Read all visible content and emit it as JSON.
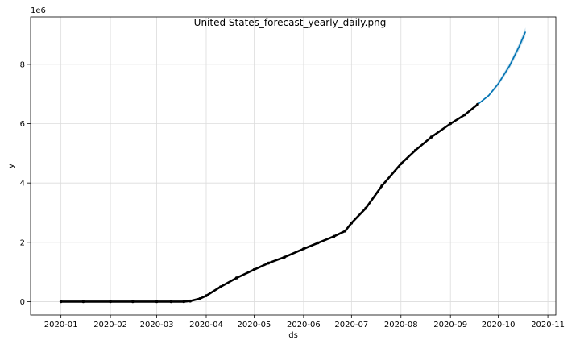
{
  "chart_data": {
    "type": "line",
    "title": "United States_forecast_yearly_daily.png",
    "xlabel": "ds",
    "ylabel": "y",
    "y_offset_label": "1e6",
    "x_tick_labels": [
      "2020-01",
      "2020-02",
      "2020-03",
      "2020-04",
      "2020-05",
      "2020-06",
      "2020-07",
      "2020-08",
      "2020-09",
      "2020-10",
      "2020-11"
    ],
    "x_ticks": [
      "2020-01-01",
      "2020-02-01",
      "2020-03-01",
      "2020-04-01",
      "2020-05-01",
      "2020-06-01",
      "2020-07-01",
      "2020-08-01",
      "2020-09-01",
      "2020-10-01",
      "2020-11-01"
    ],
    "xlim": [
      "2019-12-13",
      "2020-11-06"
    ],
    "y_ticks": [
      0,
      2000000,
      4000000,
      6000000,
      8000000
    ],
    "y_tick_labels": [
      "0",
      "2",
      "4",
      "6",
      "8"
    ],
    "ylim": [
      -450000,
      9600000
    ],
    "grid": true,
    "colors": {
      "forecast": "#0072B2",
      "observed": "#000000",
      "band": "#9ecae1"
    },
    "series": [
      {
        "role": "observed",
        "style": "points",
        "x": [
          "2020-01-01",
          "2020-01-15",
          "2020-02-01",
          "2020-02-15",
          "2020-03-01",
          "2020-03-10",
          "2020-03-18",
          "2020-03-22",
          "2020-03-28",
          "2020-04-01",
          "2020-04-10",
          "2020-04-20",
          "2020-05-01",
          "2020-05-10",
          "2020-05-20",
          "2020-06-01",
          "2020-06-10",
          "2020-06-20",
          "2020-06-27",
          "2020-07-01",
          "2020-07-10",
          "2020-07-20",
          "2020-08-01",
          "2020-08-10",
          "2020-08-20",
          "2020-09-01",
          "2020-09-10",
          "2020-09-18"
        ],
        "y": [
          0,
          0,
          0,
          0,
          0,
          0,
          0,
          20000,
          100000,
          200000,
          500000,
          800000,
          1080000,
          1300000,
          1500000,
          1780000,
          1980000,
          2200000,
          2380000,
          2650000,
          3150000,
          3900000,
          4650000,
          5100000,
          5550000,
          6000000,
          6300000,
          6650000
        ]
      },
      {
        "role": "forecast",
        "style": "line",
        "x": [
          "2020-01-01",
          "2020-01-15",
          "2020-02-01",
          "2020-02-15",
          "2020-03-01",
          "2020-03-10",
          "2020-03-18",
          "2020-03-22",
          "2020-03-28",
          "2020-04-01",
          "2020-04-10",
          "2020-04-20",
          "2020-05-01",
          "2020-05-10",
          "2020-05-20",
          "2020-06-01",
          "2020-06-10",
          "2020-06-20",
          "2020-06-27",
          "2020-07-01",
          "2020-07-10",
          "2020-07-20",
          "2020-08-01",
          "2020-08-10",
          "2020-08-20",
          "2020-09-01",
          "2020-09-10",
          "2020-09-18",
          "2020-09-25",
          "2020-10-01",
          "2020-10-08",
          "2020-10-14",
          "2020-10-18"
        ],
        "y": [
          0,
          0,
          0,
          0,
          0,
          0,
          0,
          20000,
          100000,
          200000,
          500000,
          800000,
          1080000,
          1300000,
          1500000,
          1780000,
          1980000,
          2200000,
          2380000,
          2650000,
          3150000,
          3900000,
          4650000,
          5100000,
          5550000,
          6000000,
          6300000,
          6650000,
          6950000,
          7350000,
          7950000,
          8600000,
          9100000
        ]
      }
    ]
  }
}
